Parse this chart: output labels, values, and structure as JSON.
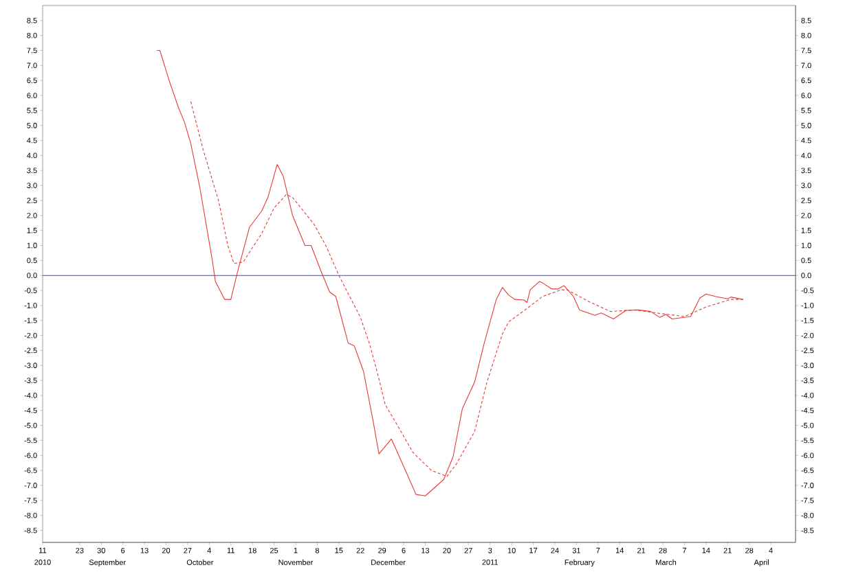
{
  "chart_data": {
    "type": "line",
    "xlim": [
      "2010-08-11",
      "2011-04-12"
    ],
    "xticks": [
      {
        "value": "2010-08-11",
        "label": "11"
      },
      {
        "value": "2010-08-23",
        "label": "23"
      },
      {
        "value": "2010-08-30",
        "label": "30"
      },
      {
        "value": "2010-09-06",
        "label": "6"
      },
      {
        "value": "2010-09-13",
        "label": "13"
      },
      {
        "value": "2010-09-20",
        "label": "20"
      },
      {
        "value": "2010-09-27",
        "label": "27"
      },
      {
        "value": "2010-10-04",
        "label": "4"
      },
      {
        "value": "2010-10-11",
        "label": "11"
      },
      {
        "value": "2010-10-18",
        "label": "18"
      },
      {
        "value": "2010-10-25",
        "label": "25"
      },
      {
        "value": "2010-11-01",
        "label": "1"
      },
      {
        "value": "2010-11-08",
        "label": "8"
      },
      {
        "value": "2010-11-15",
        "label": "15"
      },
      {
        "value": "2010-11-22",
        "label": "22"
      },
      {
        "value": "2010-11-29",
        "label": "29"
      },
      {
        "value": "2010-12-06",
        "label": "6"
      },
      {
        "value": "2010-12-13",
        "label": "13"
      },
      {
        "value": "2010-12-20",
        "label": "20"
      },
      {
        "value": "2010-12-27",
        "label": "27"
      },
      {
        "value": "2011-01-03",
        "label": "3"
      },
      {
        "value": "2011-01-10",
        "label": "10"
      },
      {
        "value": "2011-01-17",
        "label": "17"
      },
      {
        "value": "2011-01-24",
        "label": "24"
      },
      {
        "value": "2011-01-31",
        "label": "31"
      },
      {
        "value": "2011-02-07",
        "label": "7"
      },
      {
        "value": "2011-02-14",
        "label": "14"
      },
      {
        "value": "2011-02-21",
        "label": "21"
      },
      {
        "value": "2011-02-28",
        "label": "28"
      },
      {
        "value": "2011-03-07",
        "label": "7"
      },
      {
        "value": "2011-03-14",
        "label": "14"
      },
      {
        "value": "2011-03-21",
        "label": "21"
      },
      {
        "value": "2011-03-28",
        "label": "28"
      },
      {
        "value": "2011-04-04",
        "label": "4"
      }
    ],
    "x2lim": [
      "2010-08-11",
      "2011-04-12"
    ],
    "x2ticks": [
      {
        "value": "2010-08-11",
        "label": "2010"
      },
      {
        "value": "2010-09-01",
        "label": "September"
      },
      {
        "value": "2010-10-01",
        "label": "October"
      },
      {
        "value": "2010-11-01",
        "label": "November"
      },
      {
        "value": "2010-12-01",
        "label": "December"
      },
      {
        "value": "2011-01-03",
        "label": "2011"
      },
      {
        "value": "2011-02-01",
        "label": "February"
      },
      {
        "value": "2011-03-01",
        "label": "March"
      },
      {
        "value": "2011-04-01",
        "label": "April"
      }
    ],
    "ylim": [
      -8.9,
      9.0
    ],
    "yticks": [
      -8.5,
      {
        "value": -8,
        "label": "-8.0"
      },
      -7.5,
      {
        "value": -7,
        "label": "-7.0"
      },
      -6.5,
      {
        "value": -6,
        "label": "-6.0"
      },
      -5.5,
      {
        "value": -5,
        "label": "-5.0"
      },
      -4.5,
      {
        "value": -4,
        "label": "-4.0"
      },
      -3.5,
      {
        "value": -3,
        "label": "-3.0"
      },
      -2.5,
      {
        "value": -2,
        "label": "-2.0"
      },
      -1.5,
      {
        "value": -1,
        "label": "-1.0"
      },
      -0.5,
      {
        "value": 0,
        "label": "0.0"
      },
      0.5,
      {
        "value": 1,
        "label": "1.0"
      },
      1.5,
      {
        "value": 2,
        "label": "2.0"
      },
      2.5,
      {
        "value": 3,
        "label": "3.0"
      },
      3.5,
      {
        "value": 4,
        "label": "4.0"
      },
      4.5,
      {
        "value": 5,
        "label": "5.0"
      },
      5.5,
      {
        "value": 6,
        "label": "6.0"
      },
      6.5,
      {
        "value": 7,
        "label": "7.0"
      },
      7.5,
      {
        "value": 8,
        "label": "8.0"
      },
      8.5
    ],
    "y2lim": [
      -8.9,
      9.0
    ],
    "y2ticks": [
      -8.5,
      {
        "value": -8,
        "label": "-8.0"
      },
      -7.5,
      {
        "value": -7,
        "label": "-7.0"
      },
      -6.5,
      {
        "value": -6,
        "label": "-6.0"
      },
      -5.5,
      {
        "value": -5,
        "label": "-5.0"
      },
      -4.5,
      {
        "value": -4,
        "label": "-4.0"
      },
      -3.5,
      {
        "value": -3,
        "label": "-3.0"
      },
      -2.5,
      {
        "value": -2,
        "label": "-2.0"
      },
      -1.5,
      {
        "value": -1,
        "label": "-1.0"
      },
      -0.5,
      {
        "value": 0,
        "label": "0.0"
      },
      0.5,
      {
        "value": 1,
        "label": "1.0"
      },
      1.5,
      {
        "value": 2,
        "label": "2.0"
      },
      2.5,
      {
        "value": 3,
        "label": "3.0"
      },
      3.5,
      {
        "value": 4,
        "label": "4.0"
      },
      4.5,
      {
        "value": 5,
        "label": "5.0"
      },
      5.5,
      {
        "value": 6,
        "label": "6.0"
      },
      6.5,
      {
        "value": 7,
        "label": "7.0"
      },
      7.5,
      {
        "value": 8,
        "label": "8.0"
      },
      8.5
    ],
    "grid": false,
    "marker": "none",
    "ref_lines": [
      {
        "axis": "y",
        "value": 0,
        "color": "#3d3de0"
      }
    ],
    "series": [
      {
        "color": "#e53935",
        "line_style": "solid",
        "x": [
          "2010-09-17",
          "2010-09-18",
          "2010-09-21",
          "2010-09-24",
          "2010-09-26",
          "2010-09-28",
          "2010-10-01",
          "2010-10-03",
          "2010-10-05",
          "2010-10-06",
          "2010-10-09",
          "2010-10-11",
          "2010-10-13",
          "2010-10-17",
          "2010-10-21",
          "2010-10-23",
          "2010-10-26",
          "2010-10-28",
          "2010-10-31",
          "2010-11-04",
          "2010-11-06",
          "2010-11-09",
          "2010-11-12",
          "2010-11-14",
          "2010-11-18",
          "2010-11-20",
          "2010-11-23",
          "2010-11-26",
          "2010-11-28",
          "2010-12-02",
          "2010-12-04",
          "2010-12-07",
          "2010-12-10",
          "2010-12-13",
          "2010-12-19",
          "2010-12-22",
          "2010-12-25",
          "2010-12-29",
          "2011-01-01",
          "2011-01-05",
          "2011-01-07",
          "2011-01-09",
          "2011-01-11",
          "2011-01-14",
          "2011-01-15",
          "2011-01-16",
          "2011-01-19",
          "2011-01-20",
          "2011-01-23",
          "2011-01-25",
          "2011-01-27",
          "2011-01-30",
          "2011-02-01",
          "2011-02-06",
          "2011-02-08",
          "2011-02-12",
          "2011-02-16",
          "2011-02-20",
          "2011-02-24",
          "2011-02-27",
          "2011-03-01",
          "2011-03-03",
          "2011-03-09",
          "2011-03-12",
          "2011-03-14",
          "2011-03-17",
          "2011-03-21",
          "2011-03-22",
          "2011-03-26"
        ],
        "values": [
          7.5,
          7.5,
          6.5,
          5.6,
          5.1,
          4.4,
          2.9,
          1.7,
          0.5,
          -0.2,
          -0.8,
          -0.8,
          0.05,
          1.6,
          2.15,
          2.6,
          3.7,
          3.3,
          2.0,
          1.0,
          1.0,
          0.2,
          -0.55,
          -0.7,
          -2.25,
          -2.35,
          -3.2,
          -4.8,
          -5.95,
          -5.45,
          -5.9,
          -6.6,
          -7.3,
          -7.35,
          -6.8,
          -6.05,
          -4.45,
          -3.55,
          -2.3,
          -0.8,
          -0.4,
          -0.65,
          -0.8,
          -0.82,
          -0.9,
          -0.48,
          -0.2,
          -0.25,
          -0.45,
          -0.45,
          -0.34,
          -0.7,
          -1.15,
          -1.33,
          -1.25,
          -1.45,
          -1.17,
          -1.15,
          -1.2,
          -1.4,
          -1.3,
          -1.45,
          -1.37,
          -0.75,
          -0.62,
          -0.7,
          -0.78,
          -0.72,
          -0.8
        ]
      },
      {
        "color": "#e53935",
        "line_style": "dashed",
        "x": [
          "2010-09-28",
          "2010-10-02",
          "2010-10-07",
          "2010-10-10",
          "2010-10-12",
          "2010-10-15",
          "2010-10-21",
          "2010-10-25",
          "2010-10-29",
          "2010-10-31",
          "2010-11-07",
          "2010-11-11",
          "2010-11-15",
          "2010-11-22",
          "2010-11-25",
          "2010-11-28",
          "2010-11-30",
          "2010-12-04",
          "2010-12-09",
          "2010-12-15",
          "2010-12-20",
          "2010-12-23",
          "2010-12-29",
          "2011-01-02",
          "2011-01-07",
          "2011-01-09",
          "2011-01-15",
          "2011-01-20",
          "2011-01-26",
          "2011-01-28",
          "2011-02-04",
          "2011-02-11",
          "2011-02-19",
          "2011-02-26",
          "2011-03-07",
          "2011-03-14",
          "2011-03-22",
          "2011-03-26"
        ],
        "values": [
          5.8,
          4.2,
          2.5,
          1.0,
          0.4,
          0.45,
          1.4,
          2.25,
          2.7,
          2.6,
          1.7,
          0.95,
          0.0,
          -1.4,
          -2.3,
          -3.45,
          -4.3,
          -5.0,
          -5.9,
          -6.5,
          -6.7,
          -6.3,
          -5.2,
          -3.55,
          -1.95,
          -1.55,
          -1.1,
          -0.7,
          -0.48,
          -0.48,
          -0.87,
          -1.2,
          -1.15,
          -1.25,
          -1.37,
          -1.05,
          -0.8,
          -0.8
        ]
      }
    ]
  }
}
